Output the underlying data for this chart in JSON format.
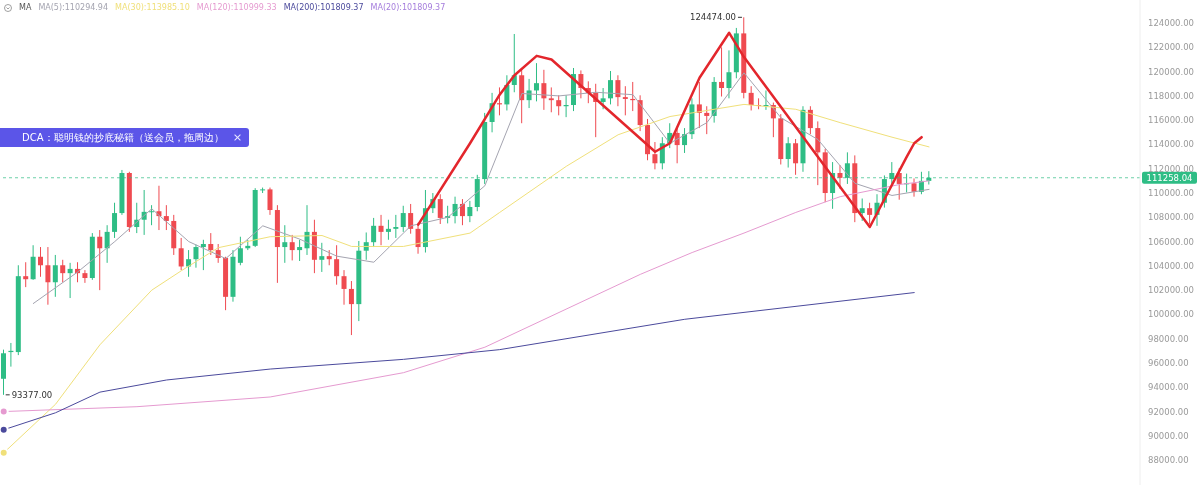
{
  "chart_data": {
    "type": "candlestick",
    "categories": [
      null,
      null,
      null,
      null,
      null,
      null,
      null,
      null,
      null,
      null,
      null,
      null,
      null,
      null,
      null,
      null,
      null,
      null,
      null,
      null,
      null,
      null,
      null,
      null,
      null,
      null,
      null,
      null,
      null,
      null,
      null,
      null,
      null,
      null,
      null,
      null,
      null,
      null,
      null,
      null,
      null,
      null,
      null,
      null,
      null,
      null,
      null,
      null,
      null,
      null,
      null,
      null,
      null,
      null,
      null,
      null,
      null,
      null,
      null,
      null,
      null,
      null,
      null,
      null,
      null,
      null,
      null,
      null,
      null,
      null,
      null,
      null,
      null,
      null,
      null,
      null,
      null,
      null,
      null,
      null,
      null,
      null,
      null,
      null,
      null,
      null,
      null,
      null,
      null,
      null,
      null,
      null,
      null,
      null,
      null,
      null,
      null,
      null,
      null,
      null,
      null,
      null,
      null,
      null,
      null,
      null,
      null,
      null,
      null,
      null,
      null,
      null,
      null,
      null,
      null,
      null,
      null,
      null,
      null,
      null,
      null,
      null,
      null,
      null,
      null,
      null,
      null,
      null,
      null,
      null,
      null,
      null,
      null,
      null,
      null,
      null,
      null,
      null,
      null,
      null,
      null,
      null,
      null,
      null,
      null,
      null,
      null,
      null,
      null,
      null,
      null,
      null,
      null,
      null
    ],
    "ohlc": [
      [
        94700,
        97100,
        93377,
        96800
      ],
      [
        96900,
        97650,
        95700,
        97000
      ],
      [
        96900,
        104050,
        96650,
        103150
      ],
      [
        103150,
        104300,
        102250,
        102900
      ],
      [
        102900,
        105700,
        102850,
        104750
      ],
      [
        104750,
        105550,
        103100,
        104050
      ],
      [
        104050,
        105550,
        100800,
        102650
      ],
      [
        102650,
        104900,
        101450,
        104050
      ],
      [
        104050,
        104500,
        102650,
        103400
      ],
      [
        103400,
        104250,
        101350,
        103750
      ],
      [
        103750,
        104300,
        102650,
        103400
      ],
      [
        103400,
        103650,
        102600,
        103000
      ],
      [
        103000,
        106700,
        102850,
        106400
      ],
      [
        106400,
        106950,
        102000,
        105450
      ],
      [
        105450,
        107350,
        104250,
        106800
      ],
      [
        106800,
        109200,
        106300,
        108350
      ],
      [
        108350,
        111900,
        108200,
        111650
      ],
      [
        111650,
        111750,
        106800,
        107200
      ],
      [
        107200,
        109200,
        106700,
        107800
      ],
      [
        107800,
        110250,
        106550,
        108450
      ],
      [
        108450,
        109000,
        107350,
        108500
      ],
      [
        108500,
        110600,
        106950,
        108100
      ],
      [
        108100,
        109000,
        106950,
        107700
      ],
      [
        107700,
        108200,
        104900,
        105450
      ],
      [
        105450,
        106300,
        103650,
        103950
      ],
      [
        103950,
        105300,
        103100,
        104550
      ],
      [
        104550,
        105750,
        103850,
        105550
      ],
      [
        105550,
        106150,
        103650,
        105800
      ],
      [
        105800,
        106700,
        104900,
        105300
      ],
      [
        105300,
        105800,
        104250,
        104650
      ],
      [
        104650,
        104750,
        100350,
        101450
      ],
      [
        101450,
        105300,
        101050,
        104750
      ],
      [
        104250,
        106400,
        104050,
        105450
      ],
      [
        105450,
        106150,
        105300,
        105650
      ],
      [
        105650,
        110400,
        105550,
        110250
      ],
      [
        110250,
        110450,
        110000,
        110300
      ],
      [
        110300,
        110450,
        108200,
        108600
      ],
      [
        108600,
        109000,
        102600,
        105550
      ],
      [
        105550,
        107350,
        104250,
        105950
      ],
      [
        105950,
        106550,
        104450,
        105300
      ],
      [
        105300,
        106150,
        104400,
        105550
      ],
      [
        105450,
        109000,
        104900,
        106800
      ],
      [
        106800,
        107800,
        103400,
        104500
      ],
      [
        104500,
        105900,
        103500,
        104800
      ],
      [
        104800,
        105300,
        104050,
        104550
      ],
      [
        104550,
        105700,
        102450,
        103150
      ],
      [
        103150,
        103650,
        100800,
        102100
      ],
      [
        102100,
        102750,
        98300,
        100850
      ],
      [
        100850,
        106050,
        99450,
        105250
      ],
      [
        105250,
        106750,
        104500,
        105950
      ],
      [
        105950,
        107950,
        105550,
        107300
      ],
      [
        107300,
        108200,
        105700,
        106800
      ],
      [
        106800,
        107800,
        106150,
        107050
      ],
      [
        107050,
        108200,
        106300,
        107200
      ],
      [
        107200,
        108950,
        106800,
        108350
      ],
      [
        108350,
        109100,
        106650,
        107050
      ],
      [
        107050,
        107550,
        105000,
        105550
      ],
      [
        105550,
        110250,
        105100,
        108750
      ],
      [
        108750,
        110000,
        108350,
        109500
      ],
      [
        109500,
        109900,
        107450,
        107950
      ],
      [
        107950,
        108950,
        107500,
        108100
      ],
      [
        108100,
        109700,
        107500,
        109100
      ],
      [
        109100,
        109500,
        107350,
        108100
      ],
      [
        108100,
        109350,
        107600,
        108850
      ],
      [
        108850,
        111500,
        108500,
        111150
      ],
      [
        111150,
        116600,
        110750,
        115850
      ],
      [
        115850,
        118250,
        115000,
        117400
      ],
      [
        117400,
        118700,
        116400,
        117300
      ],
      [
        117300,
        119700,
        116800,
        118900
      ],
      [
        118900,
        123100,
        118300,
        119700
      ],
      [
        119700,
        120300,
        115750,
        117650
      ],
      [
        117650,
        119400,
        117000,
        118450
      ],
      [
        118450,
        120700,
        117550,
        119050
      ],
      [
        119050,
        120150,
        116850,
        117800
      ],
      [
        117800,
        118700,
        116650,
        117650
      ],
      [
        117650,
        118050,
        116400,
        117150
      ],
      [
        117150,
        118050,
        116250,
        117250
      ],
      [
        117250,
        120300,
        116750,
        119800
      ],
      [
        119800,
        120100,
        117800,
        118650
      ],
      [
        118650,
        119200,
        117400,
        118250
      ],
      [
        118250,
        119000,
        114600,
        117500
      ],
      [
        117500,
        118650,
        116900,
        117800
      ],
      [
        117800,
        120050,
        117300,
        119300
      ],
      [
        119300,
        119700,
        117150,
        117900
      ],
      [
        117900,
        118800,
        116400,
        117750
      ],
      [
        117750,
        119150,
        116750,
        117650
      ],
      [
        117650,
        118050,
        115100,
        115600
      ],
      [
        115600,
        116100,
        112700,
        113200
      ],
      [
        113200,
        114200,
        111950,
        112450
      ],
      [
        112450,
        114600,
        111950,
        114100
      ],
      [
        114100,
        115750,
        113700,
        114950
      ],
      [
        114950,
        115400,
        112450,
        113950
      ],
      [
        113950,
        115350,
        113300,
        114850
      ],
      [
        114850,
        117800,
        114450,
        117300
      ],
      [
        117300,
        119150,
        115350,
        116600
      ],
      [
        116600,
        117150,
        114850,
        116350
      ],
      [
        116350,
        119550,
        115800,
        119150
      ],
      [
        119150,
        122000,
        117950,
        118650
      ],
      [
        118650,
        121750,
        117800,
        119950
      ],
      [
        119950,
        123600,
        119450,
        123150
      ],
      [
        123150,
        124474,
        117800,
        118250
      ],
      [
        118250,
        118800,
        116800,
        117250
      ],
      [
        117250,
        117800,
        116900,
        117200
      ],
      [
        117200,
        118450,
        116850,
        117250
      ],
      [
        117250,
        117450,
        114600,
        116150
      ],
      [
        116150,
        116500,
        112350,
        112800
      ],
      [
        112800,
        114600,
        112100,
        114100
      ],
      [
        114100,
        114450,
        111500,
        112450
      ],
      [
        112450,
        117150,
        111750,
        116850
      ],
      [
        116850,
        117150,
        114850,
        115350
      ],
      [
        115350,
        115900,
        110650,
        113350
      ],
      [
        113350,
        113650,
        109250,
        110000
      ],
      [
        110000,
        112550,
        108700,
        111650
      ],
      [
        111650,
        112300,
        110350,
        111250
      ],
      [
        111250,
        113350,
        110750,
        112450
      ],
      [
        112450,
        113100,
        107600,
        108350
      ],
      [
        108350,
        109550,
        107700,
        108750
      ],
      [
        108750,
        109200,
        107450,
        108200
      ],
      [
        108200,
        109900,
        107300,
        109200
      ],
      [
        109200,
        111450,
        108800,
        111150
      ],
      [
        111150,
        112550,
        110750,
        111650
      ],
      [
        111650,
        112050,
        109450,
        110750
      ],
      [
        110750,
        111600,
        110050,
        110800
      ],
      [
        110800,
        111200,
        109700,
        110100
      ],
      [
        110100,
        111750,
        109900,
        111000
      ],
      [
        111000,
        111800,
        110700,
        111258.04
      ],
      null,
      null,
      null,
      null,
      null,
      null,
      null,
      null,
      null,
      null,
      null,
      null,
      null,
      null,
      null,
      null,
      null,
      null,
      null,
      null,
      null,
      null,
      null,
      null,
      null,
      null,
      null,
      null
    ],
    "colors": [
      "#2ebd85",
      "#2ebd85",
      "#2ebd85",
      "#ef4a50",
      "#2ebd85",
      "#ef4a50",
      "#ef4a50",
      "#2ebd85",
      "#ef4a50",
      "#2ebd85",
      "#ef4a50",
      "#ef4a50",
      "#2ebd85",
      "#ef4a50",
      "#2ebd85",
      "#2ebd85",
      "#2ebd85",
      "#ef4a50",
      "#2ebd85",
      "#2ebd85",
      "#2ebd85",
      "#ef4a50",
      "#ef4a50",
      "#ef4a50",
      "#ef4a50",
      "#2ebd85",
      "#2ebd85",
      "#2ebd85",
      "#ef4a50",
      "#ef4a50",
      "#ef4a50",
      "#2ebd85",
      "#2ebd85",
      "#2ebd85",
      "#2ebd85",
      "#2ebd85",
      "#ef4a50",
      "#ef4a50",
      "#2ebd85",
      "#ef4a50",
      "#2ebd85",
      "#2ebd85",
      "#ef4a50",
      "#2ebd85",
      "#ef4a50",
      "#ef4a50",
      "#ef4a50",
      "#ef4a50",
      "#2ebd85",
      "#2ebd85",
      "#2ebd85",
      "#ef4a50",
      "#2ebd85",
      "#2ebd85",
      "#2ebd85",
      "#ef4a50",
      "#ef4a50",
      "#2ebd85",
      "#2ebd85",
      "#ef4a50",
      "#2ebd85",
      "#2ebd85",
      "#ef4a50",
      "#2ebd85",
      "#2ebd85",
      "#2ebd85",
      "#2ebd85",
      "#ef4a50",
      "#2ebd85",
      "#2ebd85",
      "#ef4a50",
      "#2ebd85",
      "#2ebd85",
      "#ef4a50",
      "#ef4a50",
      "#ef4a50",
      "#2ebd85",
      "#2ebd85",
      "#ef4a50",
      "#ef4a50",
      "#ef4a50",
      "#2ebd85",
      "#2ebd85",
      "#ef4a50",
      "#ef4a50",
      "#ef4a50",
      "#ef4a50",
      "#ef4a50",
      "#ef4a50",
      "#2ebd85",
      "#2ebd85",
      "#ef4a50",
      "#2ebd85",
      "#2ebd85",
      "#ef4a50",
      "#ef4a50",
      "#2ebd85",
      "#ef4a50",
      "#2ebd85",
      "#2ebd85",
      "#ef4a50",
      "#ef4a50",
      "#ef4a50",
      "#2ebd85",
      "#ef4a50",
      "#ef4a50",
      "#2ebd85",
      "#ef4a50",
      "#2ebd85",
      "#ef4a50",
      "#ef4a50",
      "#ef4a50",
      "#2ebd85",
      "#ef4a50",
      "#2ebd85",
      "#ef4a50",
      "#2ebd85",
      "#ef4a50",
      "#2ebd85",
      "#2ebd85",
      "#2ebd85",
      "#ef4a50",
      "#2ebd85",
      "#ef4a50",
      "#2ebd85",
      "#2ebd85",
      null,
      null,
      null,
      null,
      null,
      null,
      null,
      null,
      null,
      null,
      null,
      null,
      null,
      null,
      null,
      null,
      null,
      null,
      null,
      null,
      null,
      null,
      null,
      null,
      null,
      null,
      null,
      null
    ],
    "series": [
      {
        "type": "line",
        "name": "MA(5):110294.94",
        "color": "#a4a4b0",
        "values": [
          null,
          null,
          null,
          null,
          100900,
          null,
          null,
          null,
          null,
          null,
          103500,
          null,
          null,
          null,
          null,
          106000,
          null,
          null,
          null,
          null,
          108700,
          null,
          null,
          null,
          null,
          106000,
          null,
          null,
          null,
          null,
          104600,
          null,
          null,
          null,
          null,
          107300,
          null,
          null,
          null,
          null,
          106200,
          null,
          null,
          null,
          null,
          104800,
          null,
          null,
          null,
          null,
          104300,
          null,
          null,
          null,
          null,
          107300,
          null,
          null,
          null,
          null,
          108000,
          null,
          null,
          null,
          null,
          110600,
          null,
          null,
          null,
          null,
          118200,
          null,
          null,
          null,
          null,
          118000,
          null,
          null,
          null,
          null,
          118300,
          null,
          null,
          null,
          null,
          118100,
          null,
          null,
          null,
          null,
          114100,
          null,
          null,
          null,
          null,
          115800,
          null,
          null,
          null,
          null,
          119900,
          null,
          null,
          null,
          null,
          116200,
          null,
          null,
          null,
          null,
          114400,
          null,
          null,
          null,
          null,
          110800,
          null,
          null,
          null,
          null,
          109800,
          null,
          null,
          null,
          null,
          110300,
          null,
          null,
          null,
          null,
          null,
          null,
          null,
          null,
          null,
          null,
          null,
          null,
          null,
          null,
          null,
          null,
          null,
          null,
          null,
          null,
          null,
          null,
          null,
          null,
          null,
          null,
          null,
          null
        ]
      },
      {
        "type": "line",
        "name": "MA(30):113985.10",
        "color": "#f0e07a",
        "values": [
          88600,
          null,
          null,
          null,
          null,
          null,
          null,
          92600,
          null,
          null,
          null,
          null,
          null,
          97500,
          null,
          null,
          null,
          null,
          null,
          null,
          102000,
          null,
          null,
          null,
          103600,
          null,
          null,
          null,
          null,
          105500,
          null,
          null,
          null,
          null,
          null,
          null,
          106400,
          null,
          null,
          null,
          null,
          null,
          null,
          106500,
          null,
          null,
          null,
          105600,
          null,
          null,
          null,
          null,
          null,
          null,
          105600,
          null,
          null,
          null,
          null,
          null,
          null,
          null,
          null,
          106700,
          null,
          null,
          null,
          108400,
          null,
          null,
          null,
          null,
          null,
          null,
          null,
          null,
          112200,
          null,
          null,
          null,
          null,
          null,
          null,
          114800,
          null,
          null,
          null,
          null,
          null,
          null,
          116300,
          null,
          null,
          116600,
          null,
          null,
          null,
          null,
          null,
          null,
          117300,
          null,
          null,
          null,
          null,
          null,
          null,
          116900,
          null,
          null,
          null,
          null,
          null,
          115800,
          null,
          null,
          null,
          null,
          null,
          null,
          114600,
          null,
          null,
          null,
          null,
          113800,
          null,
          null,
          null,
          null,
          null,
          null,
          null,
          null,
          null,
          null,
          null,
          null,
          null,
          null,
          null,
          null,
          null,
          null,
          null,
          null,
          null,
          null,
          null,
          null,
          null,
          null,
          null,
          null
        ]
      },
      {
        "type": "line",
        "name": "MA(120):110999.33",
        "color": "#e59ad0",
        "values": [
          92000,
          null,
          null,
          null,
          null,
          null,
          null,
          null,
          null,
          null,
          null,
          null,
          null,
          null,
          null,
          null,
          null,
          null,
          92400,
          null,
          null,
          null,
          null,
          null,
          null,
          null,
          null,
          null,
          null,
          null,
          null,
          null,
          null,
          null,
          null,
          null,
          93200,
          null,
          null,
          null,
          null,
          null,
          null,
          null,
          null,
          null,
          null,
          null,
          null,
          null,
          null,
          null,
          null,
          null,
          95200,
          null,
          null,
          null,
          null,
          null,
          null,
          null,
          null,
          null,
          null,
          97300,
          null,
          null,
          null,
          null,
          null,
          null,
          null,
          null,
          null,
          null,
          null,
          null,
          null,
          null,
          null,
          null,
          null,
          null,
          null,
          null,
          103300,
          null,
          null,
          null,
          null,
          null,
          null,
          105100,
          null,
          null,
          null,
          null,
          null,
          null,
          106700,
          null,
          null,
          null,
          null,
          null,
          null,
          108400,
          null,
          null,
          null,
          null,
          null,
          109700,
          null,
          null,
          null,
          null,
          null,
          null,
          null,
          110700,
          null,
          null,
          null,
          111000,
          null,
          null,
          null,
          null,
          null,
          null,
          null,
          null,
          null,
          null,
          null,
          null,
          null,
          null,
          null,
          null,
          null,
          null,
          null,
          null,
          null,
          null,
          null,
          null,
          null,
          null,
          null,
          null
        ]
      },
      {
        "type": "line",
        "name": "MA(200):101809.37",
        "color": "#4b4a9c",
        "values": [
          90500,
          null,
          null,
          null,
          null,
          null,
          null,
          91900,
          null,
          null,
          null,
          null,
          null,
          93600,
          null,
          null,
          null,
          null,
          null,
          null,
          null,
          null,
          94600,
          null,
          null,
          null,
          null,
          null,
          null,
          null,
          null,
          null,
          null,
          null,
          null,
          null,
          95500,
          null,
          null,
          null,
          null,
          null,
          null,
          null,
          null,
          null,
          null,
          null,
          null,
          null,
          null,
          null,
          null,
          null,
          96300,
          null,
          null,
          null,
          null,
          null,
          null,
          null,
          null,
          null,
          null,
          null,
          null,
          97100,
          null,
          null,
          null,
          null,
          null,
          null,
          null,
          null,
          null,
          null,
          null,
          null,
          null,
          null,
          null,
          null,
          null,
          null,
          null,
          null,
          null,
          null,
          null,
          null,
          99600,
          null,
          null,
          null,
          null,
          null,
          null,
          null,
          null,
          null,
          null,
          null,
          null,
          null,
          null,
          null,
          null,
          null,
          null,
          null,
          null,
          null,
          null,
          null,
          null,
          null,
          null,
          null,
          null,
          null,
          null,
          101800,
          null,
          null,
          null,
          null,
          null,
          null,
          null,
          null,
          null,
          null,
          null,
          null,
          null,
          null,
          null,
          null,
          null,
          null,
          null,
          null,
          null,
          null,
          null,
          null,
          null,
          null,
          null,
          null,
          null,
          null
        ]
      },
      {
        "type": "line",
        "color": "#e3262c",
        "values": [
          null,
          null,
          null,
          null,
          null,
          null,
          null,
          null,
          null,
          null,
          null,
          null,
          null,
          null,
          null,
          null,
          null,
          null,
          null,
          null,
          null,
          null,
          null,
          null,
          null,
          null,
          null,
          null,
          null,
          null,
          null,
          null,
          null,
          null,
          null,
          null,
          null,
          null,
          null,
          null,
          null,
          null,
          null,
          null,
          null,
          null,
          null,
          null,
          null,
          null,
          null,
          null,
          null,
          null,
          null,
          null,
          107400,
          null,
          null,
          null,
          null,
          null,
          null,
          114100,
          null,
          null,
          null,
          118100,
          null,
          119700,
          null,
          null,
          121300,
          null,
          121000,
          null,
          null,
          null,
          null,
          null,
          null,
          null,
          null,
          null,
          null,
          null,
          null,
          null,
          113400,
          null,
          114100,
          null,
          null,
          null,
          119500,
          null,
          null,
          null,
          123200,
          null,
          121200,
          null,
          null,
          null,
          null,
          null,
          null,
          null,
          null,
          null,
          null,
          null,
          null,
          null,
          null,
          null,
          null,
          107200,
          null,
          null,
          null,
          null,
          113000,
          114100,
          114600,
          null,
          null,
          null,
          null,
          null,
          null,
          null,
          null,
          null,
          null,
          null,
          null,
          null,
          null,
          null,
          null,
          null,
          null,
          null,
          null,
          null,
          null,
          null,
          null,
          null,
          null,
          null,
          null,
          null
        ]
      }
    ],
    "legend_title": "MA",
    "legend": "top left",
    "ylim": [
      85950,
      125900
    ],
    "yticks": [
      {
        "value": 88000,
        "label": "88000.00"
      },
      {
        "value": 90000,
        "label": "90000.00"
      },
      {
        "value": 92000,
        "label": "92000.00"
      },
      {
        "value": 94000,
        "label": "94000.00"
      },
      {
        "value": 96000,
        "label": "96000.00"
      },
      {
        "value": 98000,
        "label": "98000.00"
      },
      {
        "value": 100000,
        "label": "100000.00"
      },
      {
        "value": 102000,
        "label": "102000.00"
      },
      {
        "value": 104000,
        "label": "104000.00"
      },
      {
        "value": 106000,
        "label": "106000.00"
      },
      {
        "value": 108000,
        "label": "108000.00"
      },
      {
        "value": 110000,
        "label": "110000.00"
      },
      {
        "value": 112000,
        "label": "112000.00"
      },
      {
        "value": 114000,
        "label": "114000.00"
      },
      {
        "value": 116000,
        "label": "116000.00"
      },
      {
        "value": 118000,
        "label": "118000.00"
      },
      {
        "value": 120000,
        "label": "120000.00"
      },
      {
        "value": 122000,
        "label": "122000.00"
      },
      {
        "value": 124000,
        "label": "124000.00"
      }
    ],
    "tick_labels": "y",
    "ref_lines": [
      {
        "axis": "y",
        "value": 111258.04,
        "label": "111258.04",
        "color": "#2ebd85",
        "line_style": "dashed"
      }
    ],
    "annotations": [
      "DCA：聪明钱的抄底秘籍（送会员，拖周边）",
      "MA(20):101809.37",
      "124474.00",
      "93377.00"
    ]
  }
}
